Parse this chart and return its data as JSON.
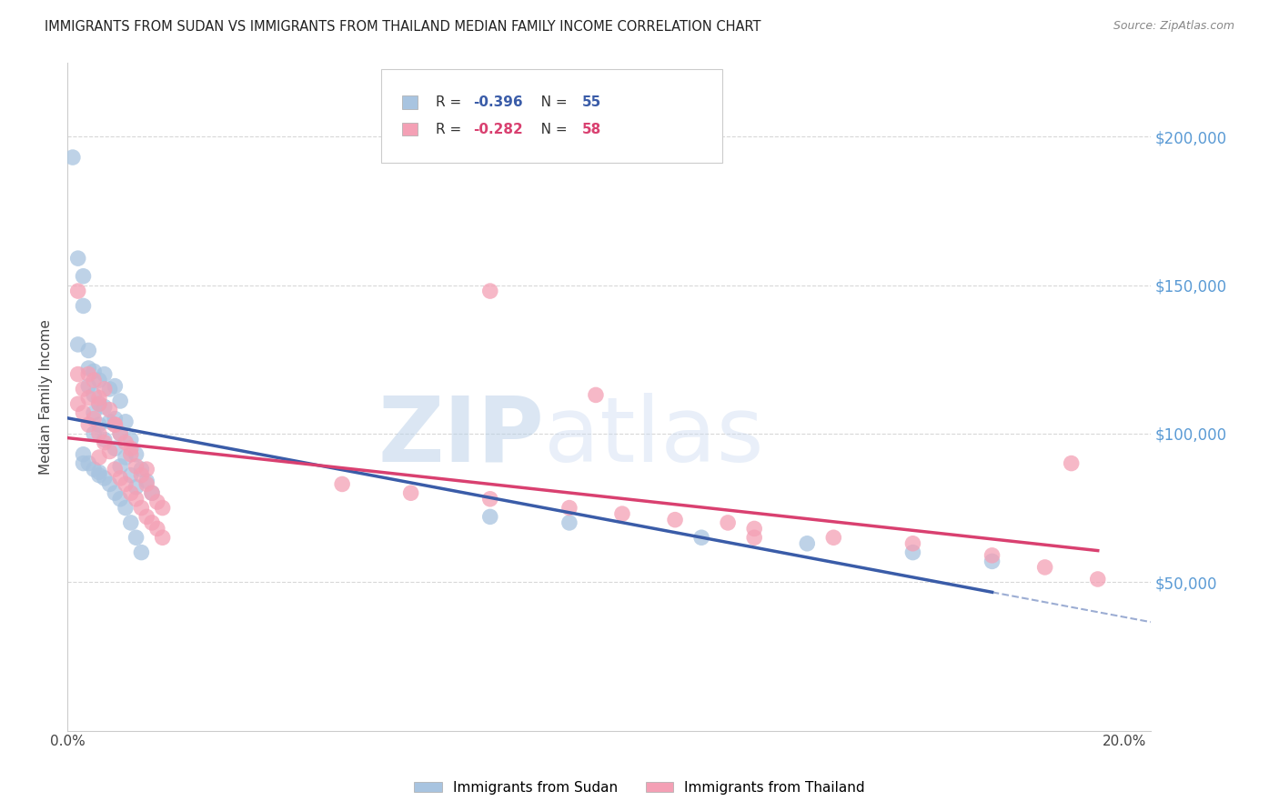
{
  "title": "IMMIGRANTS FROM SUDAN VS IMMIGRANTS FROM THAILAND MEDIAN FAMILY INCOME CORRELATION CHART",
  "source": "Source: ZipAtlas.com",
  "ylabel": "Median Family Income",
  "xlim": [
    0.0,
    0.205
  ],
  "ylim": [
    0,
    225000
  ],
  "yticks": [
    50000,
    100000,
    150000,
    200000
  ],
  "ytick_labels": [
    "$50,000",
    "$100,000",
    "$150,000",
    "$200,000"
  ],
  "xticks": [
    0.0,
    0.05,
    0.1,
    0.15,
    0.2
  ],
  "xtick_labels": [
    "0.0%",
    "",
    "",
    "",
    "20.0%"
  ],
  "sudan_color": "#a8c4e0",
  "thailand_color": "#f4a0b5",
  "sudan_line_color": "#3a5ca8",
  "thailand_line_color": "#d94070",
  "legend_sudan_R": "-0.396",
  "legend_sudan_N": "55",
  "legend_thailand_R": "-0.282",
  "legend_thailand_N": "58",
  "legend_label_sudan": "Immigrants from Sudan",
  "legend_label_thailand": "Immigrants from Thailand",
  "watermark_zip": "ZIP",
  "watermark_atlas": "atlas",
  "background_color": "#ffffff",
  "grid_color": "#d8d8d8",
  "right_axis_color": "#5b9bd5",
  "sudan_x": [
    0.001,
    0.002,
    0.003,
    0.003,
    0.004,
    0.004,
    0.004,
    0.005,
    0.005,
    0.005,
    0.005,
    0.006,
    0.006,
    0.006,
    0.007,
    0.007,
    0.007,
    0.008,
    0.008,
    0.009,
    0.009,
    0.009,
    0.01,
    0.01,
    0.01,
    0.011,
    0.011,
    0.012,
    0.012,
    0.013,
    0.013,
    0.014,
    0.015,
    0.016,
    0.002,
    0.003,
    0.004,
    0.005,
    0.006,
    0.007,
    0.008,
    0.009,
    0.01,
    0.011,
    0.012,
    0.013,
    0.014,
    0.08,
    0.095,
    0.12,
    0.14,
    0.16,
    0.175,
    0.003,
    0.006
  ],
  "sudan_y": [
    193000,
    159000,
    153000,
    143000,
    128000,
    122000,
    116000,
    121000,
    113000,
    107000,
    100000,
    118000,
    110000,
    103000,
    120000,
    109000,
    98000,
    115000,
    104000,
    116000,
    105000,
    95000,
    111000,
    100000,
    89000,
    104000,
    92000,
    98000,
    86000,
    93000,
    82000,
    88000,
    84000,
    80000,
    130000,
    93000,
    90000,
    88000,
    87000,
    85000,
    83000,
    80000,
    78000,
    75000,
    70000,
    65000,
    60000,
    72000,
    70000,
    65000,
    63000,
    60000,
    57000,
    90000,
    86000
  ],
  "thailand_x": [
    0.002,
    0.002,
    0.003,
    0.003,
    0.004,
    0.004,
    0.005,
    0.005,
    0.006,
    0.006,
    0.006,
    0.007,
    0.007,
    0.008,
    0.008,
    0.009,
    0.009,
    0.01,
    0.01,
    0.011,
    0.011,
    0.012,
    0.012,
    0.013,
    0.013,
    0.014,
    0.014,
    0.015,
    0.015,
    0.016,
    0.016,
    0.017,
    0.017,
    0.018,
    0.018,
    0.004,
    0.006,
    0.009,
    0.012,
    0.015,
    0.052,
    0.065,
    0.08,
    0.095,
    0.105,
    0.115,
    0.125,
    0.13,
    0.145,
    0.16,
    0.175,
    0.185,
    0.195,
    0.002,
    0.08,
    0.1,
    0.13,
    0.19
  ],
  "thailand_y": [
    120000,
    110000,
    115000,
    107000,
    112000,
    103000,
    118000,
    105000,
    110000,
    100000,
    92000,
    115000,
    97000,
    108000,
    94000,
    103000,
    88000,
    100000,
    85000,
    97000,
    83000,
    93000,
    80000,
    89000,
    78000,
    86000,
    75000,
    83000,
    72000,
    80000,
    70000,
    77000,
    68000,
    75000,
    65000,
    120000,
    112000,
    103000,
    95000,
    88000,
    83000,
    80000,
    78000,
    75000,
    73000,
    71000,
    70000,
    68000,
    65000,
    63000,
    59000,
    55000,
    51000,
    148000,
    148000,
    113000,
    65000,
    90000
  ]
}
